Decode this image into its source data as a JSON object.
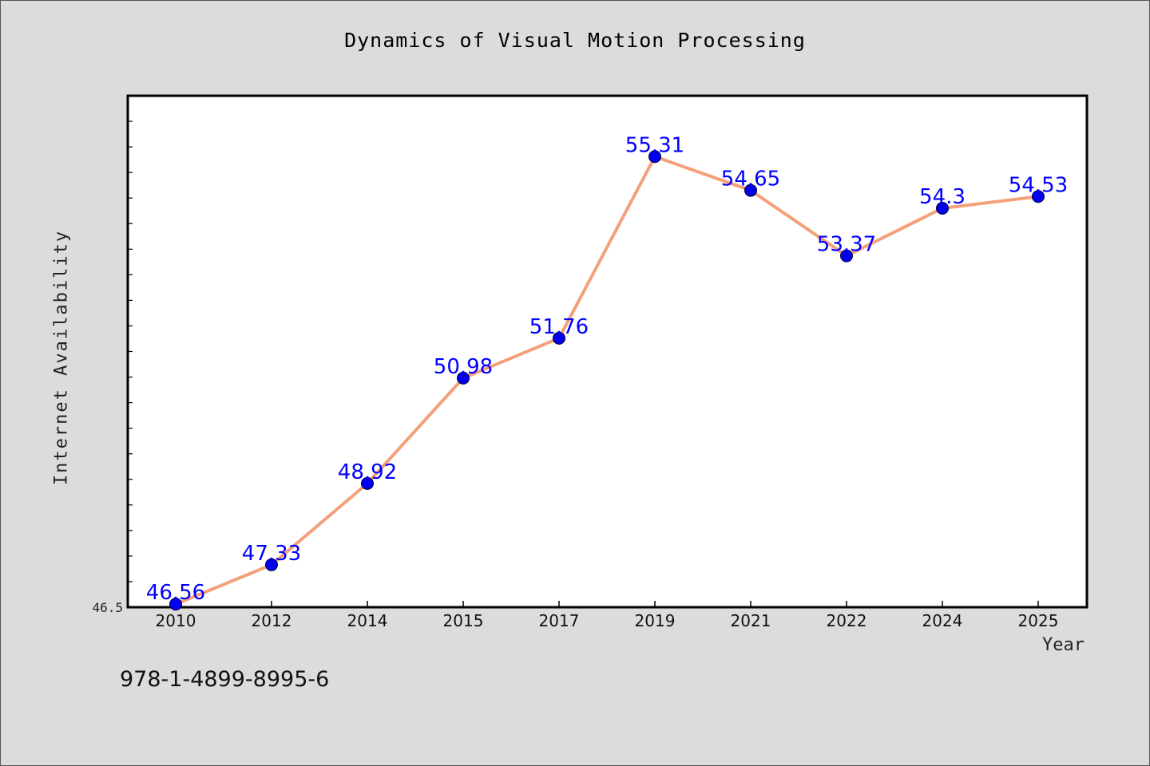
{
  "chart_data": {
    "type": "line",
    "title": "Dynamics of Visual Motion Processing",
    "xlabel": "Year",
    "ylabel": "Internet Availability",
    "categories": [
      "2010",
      "2012",
      "2014",
      "2015",
      "2017",
      "2019",
      "2021",
      "2022",
      "2024",
      "2025"
    ],
    "series": [
      {
        "values": [
          46.56,
          47.33,
          48.92,
          50.98,
          51.76,
          55.31,
          54.65,
          53.37,
          54.3,
          54.53
        ],
        "labels": [
          "46.56",
          "47.33",
          "48.92",
          "50.98",
          "51.76",
          "55.31",
          "54.65",
          "53.37",
          "54.3",
          "54.53"
        ]
      }
    ],
    "y_tick_labels": [
      "46.5"
    ],
    "ylim": [
      46.5,
      56.5
    ],
    "grid": false,
    "line_color": "#f4a07a",
    "marker_color": "#0000ee",
    "label_color": "#0000ff"
  },
  "footer": {
    "code": "978-1-4899-8995-6"
  }
}
